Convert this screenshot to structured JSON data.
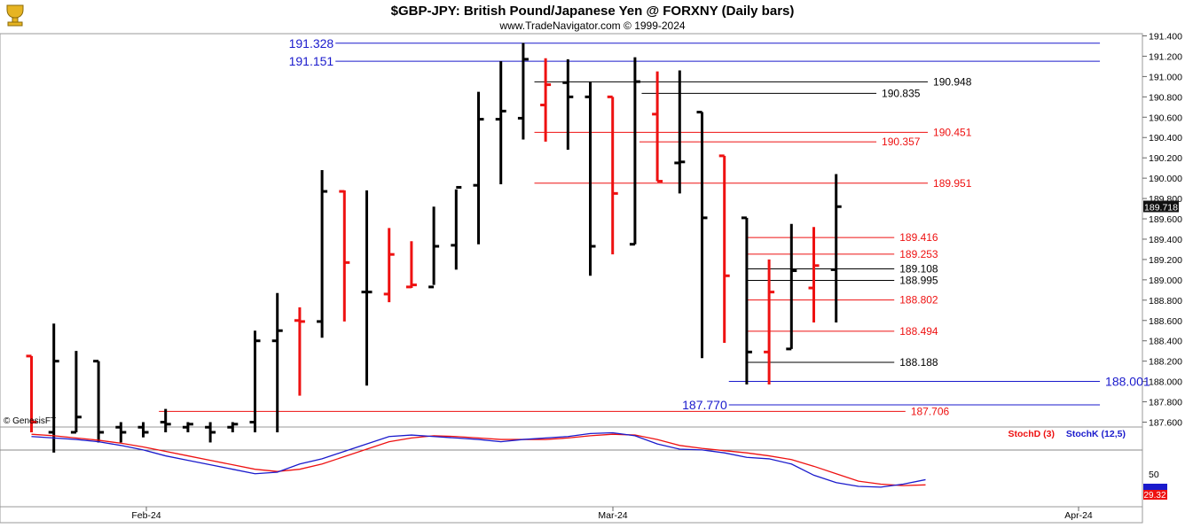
{
  "header": {
    "title": "$GBP-JPY:  British Pound/Japanese Yen @ FORXNY  (Daily bars)",
    "subtitle": "www.TradeNavigator.com © 1999-2024",
    "watermark": "© GenesisFT",
    "logo_icon": "genesis-trophy-icon"
  },
  "chart_data": {
    "type": "ohlc",
    "x_labels": [
      "Feb-24",
      "Mar-24",
      "Apr-24"
    ],
    "ylim": [
      187.6,
      191.4
    ],
    "y_ticks": [
      "191.400",
      "191.200",
      "191.000",
      "190.800",
      "190.600",
      "190.400",
      "190.200",
      "190.000",
      "189.800",
      "189.600",
      "189.400",
      "189.200",
      "189.000",
      "188.800",
      "188.600",
      "188.400",
      "188.200",
      "188.000",
      "187.800",
      "187.600"
    ],
    "last_price": "189.718",
    "colors": {
      "up": "#000000",
      "down": "#ee1111",
      "blue_level": "#1a1acc",
      "red_level": "#ee1111",
      "black_level": "#000000"
    },
    "bars": [
      {
        "o": 188.25,
        "h": 188.25,
        "l": 187.5,
        "c": 187.6,
        "color": "red"
      },
      {
        "o": 187.5,
        "h": 188.57,
        "l": 187.3,
        "c": 188.2,
        "color": "black"
      },
      {
        "o": 187.5,
        "h": 188.3,
        "l": 187.5,
        "c": 187.65,
        "color": "black"
      },
      {
        "o": 188.2,
        "h": 188.2,
        "l": 187.4,
        "c": 187.5,
        "color": "black"
      },
      {
        "o": 187.55,
        "h": 187.6,
        "l": 187.4,
        "c": 187.5,
        "color": "black"
      },
      {
        "o": 187.55,
        "h": 187.6,
        "l": 187.45,
        "c": 187.5,
        "color": "black"
      },
      {
        "o": 187.6,
        "h": 187.73,
        "l": 187.5,
        "c": 187.58,
        "color": "black"
      },
      {
        "o": 187.55,
        "h": 187.6,
        "l": 187.5,
        "c": 187.58,
        "color": "black"
      },
      {
        "o": 187.55,
        "h": 187.6,
        "l": 187.4,
        "c": 187.5,
        "color": "black"
      },
      {
        "o": 187.55,
        "h": 187.6,
        "l": 187.5,
        "c": 187.58,
        "color": "black"
      },
      {
        "o": 187.6,
        "h": 188.5,
        "l": 187.5,
        "c": 188.4,
        "color": "black"
      },
      {
        "o": 188.4,
        "h": 188.87,
        "l": 187.5,
        "c": 188.5,
        "color": "black"
      },
      {
        "o": 188.6,
        "h": 188.73,
        "l": 187.86,
        "c": 188.59,
        "color": "red"
      },
      {
        "o": 188.59,
        "h": 190.08,
        "l": 188.43,
        "c": 189.87,
        "color": "black"
      },
      {
        "o": 189.87,
        "h": 189.88,
        "l": 188.59,
        "c": 189.17,
        "color": "red"
      },
      {
        "o": 188.88,
        "h": 189.88,
        "l": 187.96,
        "c": 188.88,
        "color": "black"
      },
      {
        "o": 188.86,
        "h": 189.51,
        "l": 188.78,
        "c": 189.25,
        "color": "red"
      },
      {
        "o": 188.93,
        "h": 189.38,
        "l": 188.92,
        "c": 188.95,
        "color": "red"
      },
      {
        "o": 188.93,
        "h": 189.72,
        "l": 188.95,
        "c": 189.33,
        "color": "black"
      },
      {
        "o": 189.34,
        "h": 189.89,
        "l": 189.1,
        "c": 189.91,
        "color": "black"
      },
      {
        "o": 189.93,
        "h": 190.85,
        "l": 189.35,
        "c": 190.58,
        "color": "black"
      },
      {
        "o": 190.58,
        "h": 191.15,
        "l": 189.94,
        "c": 190.66,
        "color": "black"
      },
      {
        "o": 190.59,
        "h": 191.33,
        "l": 190.38,
        "c": 191.17,
        "color": "black"
      },
      {
        "o": 190.72,
        "h": 191.18,
        "l": 190.36,
        "c": 190.92,
        "color": "red"
      },
      {
        "o": 190.94,
        "h": 191.17,
        "l": 190.28,
        "c": 190.8,
        "color": "black"
      },
      {
        "o": 190.8,
        "h": 190.95,
        "l": 189.04,
        "c": 189.33,
        "color": "black"
      },
      {
        "o": 190.8,
        "h": 190.8,
        "l": 189.25,
        "c": 189.85,
        "color": "red"
      },
      {
        "o": 189.35,
        "h": 191.19,
        "l": 189.35,
        "c": 190.95,
        "color": "black"
      },
      {
        "o": 190.63,
        "h": 191.05,
        "l": 189.97,
        "c": 189.97,
        "color": "red"
      },
      {
        "o": 190.15,
        "h": 191.06,
        "l": 189.85,
        "c": 190.16,
        "color": "black"
      },
      {
        "o": 190.65,
        "h": 190.65,
        "l": 188.23,
        "c": 189.61,
        "color": "black"
      },
      {
        "o": 190.22,
        "h": 190.22,
        "l": 188.38,
        "c": 189.04,
        "color": "red"
      },
      {
        "o": 189.61,
        "h": 189.61,
        "l": 187.97,
        "c": 188.29,
        "color": "black"
      },
      {
        "o": 188.29,
        "h": 189.2,
        "l": 187.97,
        "c": 188.88,
        "color": "red"
      },
      {
        "o": 188.32,
        "h": 189.55,
        "l": 188.32,
        "c": 189.09,
        "color": "black"
      },
      {
        "o": 188.92,
        "h": 189.52,
        "l": 188.58,
        "c": 189.14,
        "color": "red"
      },
      {
        "o": 189.1,
        "h": 190.04,
        "l": 188.58,
        "c": 189.72,
        "color": "black"
      }
    ],
    "levels": [
      {
        "label": "191.328",
        "value": 191.328,
        "color": "blue",
        "from": 13.6,
        "to": 47.8,
        "label_pos": "left"
      },
      {
        "label": "191.151",
        "value": 191.151,
        "color": "blue",
        "from": 13.6,
        "to": 47.8,
        "label_pos": "left"
      },
      {
        "label": "190.948",
        "value": 190.948,
        "color": "black",
        "from": 22.5,
        "to": 40.1,
        "label_pos": "right"
      },
      {
        "label": "190.835",
        "value": 190.835,
        "color": "black",
        "from": 27.3,
        "to": 37.8,
        "label_pos": "right"
      },
      {
        "label": "190.451",
        "value": 190.451,
        "color": "red",
        "from": 22.5,
        "to": 40.1,
        "label_pos": "right"
      },
      {
        "label": "190.357",
        "value": 190.357,
        "color": "red",
        "from": 27.2,
        "to": 37.8,
        "label_pos": "right"
      },
      {
        "label": "189.951",
        "value": 189.951,
        "color": "red",
        "from": 22.5,
        "to": 40.1,
        "label_pos": "right"
      },
      {
        "label": "189.416",
        "value": 189.416,
        "color": "red",
        "from": 32.0,
        "to": 38.6,
        "label_pos": "right"
      },
      {
        "label": "189.253",
        "value": 189.253,
        "color": "red",
        "from": 32.0,
        "to": 38.6,
        "label_pos": "right"
      },
      {
        "label": "189.108",
        "value": 189.108,
        "color": "black",
        "from": 32.0,
        "to": 38.6,
        "label_pos": "right"
      },
      {
        "label": "188.995",
        "value": 188.995,
        "color": "black",
        "from": 32.0,
        "to": 38.6,
        "label_pos": "right"
      },
      {
        "label": "188.802",
        "value": 188.802,
        "color": "red",
        "from": 32.0,
        "to": 38.6,
        "label_pos": "right"
      },
      {
        "label": "188.494",
        "value": 188.494,
        "color": "red",
        "from": 32.0,
        "to": 38.6,
        "label_pos": "right"
      },
      {
        "label": "188.188",
        "value": 188.188,
        "color": "black",
        "from": 32.0,
        "to": 38.6,
        "label_pos": "right"
      },
      {
        "label": "188.001",
        "value": 188.001,
        "color": "blue",
        "from": 31.2,
        "to": 47.8,
        "label_pos": "right"
      },
      {
        "label": "187.770",
        "value": 187.77,
        "color": "blue",
        "from": 31.2,
        "to": 47.8,
        "label_pos": "left"
      },
      {
        "label": "187.706",
        "value": 187.706,
        "color": "red",
        "from": 5.7,
        "to": 39.1,
        "label_pos": "right"
      }
    ],
    "stoch": {
      "legend": [
        {
          "name": "StochD (3)",
          "color": "#ee1111"
        },
        {
          "name": "StochK (12,5)",
          "color": "#1a1acc"
        }
      ],
      "ylim": [
        0,
        100
      ],
      "y_tick": "50",
      "readout_top": "",
      "readout_bottom": "29.32",
      "k": [
        92,
        90,
        88,
        85,
        80,
        74,
        66,
        60,
        54,
        48,
        42,
        44,
        55,
        62,
        72,
        82,
        92,
        94,
        92,
        90,
        88,
        85,
        88,
        90,
        92,
        96,
        97,
        93,
        82,
        75,
        74,
        70,
        64,
        62,
        55,
        40,
        30,
        25,
        24,
        28,
        34
      ],
      "d": [
        95,
        93,
        90,
        87,
        83,
        78,
        72,
        66,
        60,
        54,
        48,
        45,
        48,
        55,
        65,
        75,
        85,
        90,
        93,
        92,
        90,
        88,
        88,
        88,
        90,
        93,
        95,
        94,
        88,
        80,
        76,
        73,
        70,
        66,
        61,
        52,
        42,
        32,
        28,
        26,
        27
      ]
    }
  }
}
